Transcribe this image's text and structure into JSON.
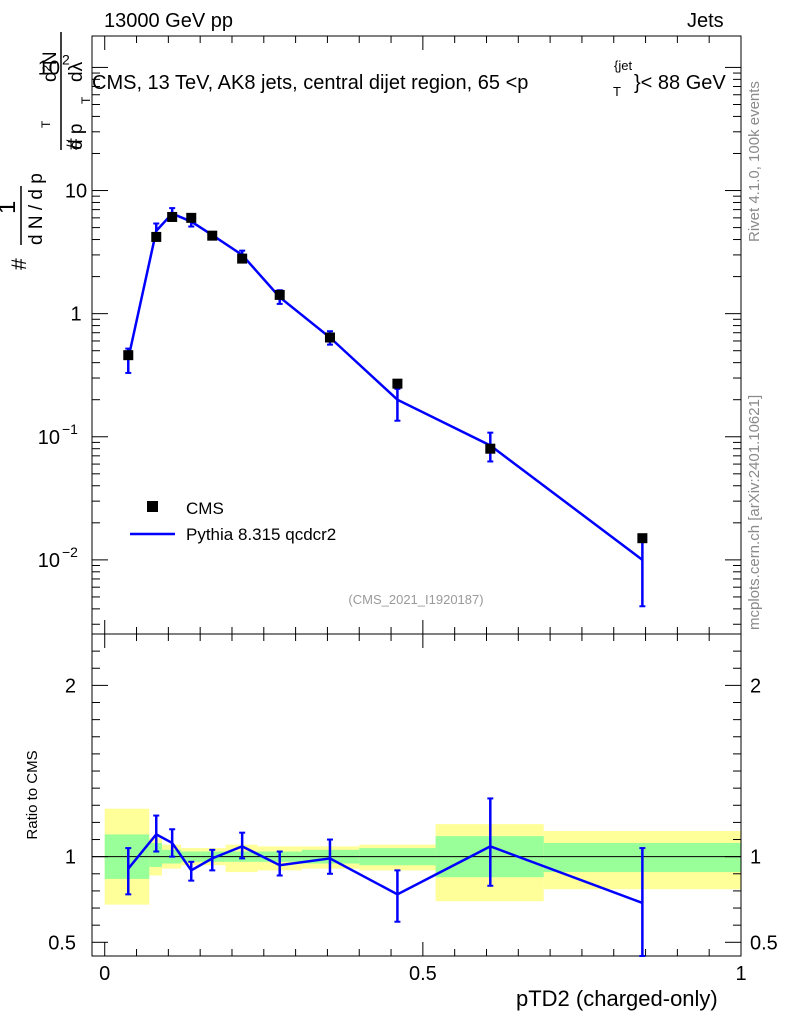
{
  "header": {
    "left": "13000 GeV pp",
    "right": "Jets"
  },
  "side_labels": {
    "rivet": "Rivet 4.1.0,  100k events",
    "source": "mcplots.cern.ch [arXiv:2401.10621]"
  },
  "chart_data": {
    "type": "line",
    "title": "CMS, 13 TeV, AK8 jets, central dijet region, 65 <p_T^{jet}< 88 GeV",
    "title_parts": {
      "before": "CMS, 13 TeV, AK8 jets, central dijet region, 65 <p",
      "sub": "T",
      "sup": "{jet",
      "after": "}< 88 GeV"
    },
    "analysis_id": "(CMS_2021_I1920187)",
    "xlabel": "pTD2 (charged-only)",
    "ylabel": "1/(dN/dp_T) · d²N/(dp_T dλ)",
    "ylabel_parts": {
      "hash": "#",
      "one": "1",
      "dN": "d N / d p",
      "T": "T",
      "d2N": "d²N",
      "dp": "d p",
      "dl": "dλ"
    },
    "ratio_ylabel": "Ratio to CMS",
    "xlim": [
      0,
      1
    ],
    "ylim": [
      0.0025,
      180
    ],
    "ratio_ylim": [
      0.42,
      2.3
    ],
    "yscale": "log",
    "x_ticks": [
      {
        "value": 0,
        "label": "0"
      },
      {
        "value": 0.5,
        "label": "0.5"
      },
      {
        "value": 1,
        "label": "1"
      }
    ],
    "y_ticks": [
      {
        "value": 0.01,
        "base": "10",
        "exp": "−2"
      },
      {
        "value": 0.1,
        "base": "10",
        "exp": "−1"
      },
      {
        "value": 1,
        "base": "1",
        "exp": ""
      },
      {
        "value": 10,
        "base": "10",
        "exp": ""
      },
      {
        "value": 100,
        "base": "10",
        "exp": "2"
      }
    ],
    "ratio_y_ticks": [
      {
        "value": 0.5,
        "label": "0.5"
      },
      {
        "value": 1,
        "label": "1"
      },
      {
        "value": 2,
        "label": "2"
      }
    ],
    "legend": [
      {
        "name": "CMS",
        "marker": "square"
      },
      {
        "name": "Pythia 8.315 qcdcr2",
        "marker": "line"
      }
    ],
    "legend_position": "bottom-left",
    "data": {
      "name": "CMS",
      "color": "#000000",
      "x": [
        0.037,
        0.081,
        0.106,
        0.136,
        0.169,
        0.216,
        0.275,
        0.354,
        0.46,
        0.606,
        0.845
      ],
      "y": [
        0.46,
        4.2,
        6.1,
        6.0,
        4.3,
        2.8,
        1.42,
        0.64,
        0.27,
        0.08,
        0.015
      ]
    },
    "mc": {
      "name": "Pythia 8.315 qcdcr2",
      "color": "#0000ff",
      "x": [
        0.037,
        0.081,
        0.106,
        0.136,
        0.169,
        0.216,
        0.275,
        0.354,
        0.46,
        0.606,
        0.845
      ],
      "y": [
        0.43,
        4.7,
        6.5,
        5.6,
        4.35,
        3.0,
        1.36,
        0.64,
        0.2,
        0.085,
        0.01
      ],
      "err_lo": [
        0.33,
        4.0,
        5.7,
        5.1,
        4.1,
        2.75,
        1.2,
        0.56,
        0.135,
        0.063,
        0.0042
      ],
      "err_hi": [
        0.52,
        5.4,
        7.2,
        6.1,
        4.55,
        3.25,
        1.55,
        0.72,
        0.245,
        0.108,
        0.0155
      ]
    },
    "ratio": {
      "x": [
        0.037,
        0.081,
        0.106,
        0.136,
        0.169,
        0.216,
        0.275,
        0.354,
        0.46,
        0.606,
        0.845
      ],
      "y": [
        0.93,
        1.13,
        1.08,
        0.92,
        0.99,
        1.06,
        0.95,
        0.99,
        0.78,
        1.06,
        0.73
      ],
      "err_lo": [
        0.78,
        1.03,
        1.0,
        0.86,
        0.92,
        0.99,
        0.89,
        0.9,
        0.62,
        0.83,
        0.42
      ],
      "err_hi": [
        1.05,
        1.24,
        1.16,
        0.97,
        1.04,
        1.14,
        1.03,
        1.1,
        0.92,
        1.34,
        1.05
      ]
    },
    "ratio_bands": [
      {
        "x0": 0.0,
        "x1": 0.07,
        "stat": [
          0.87,
          1.13
        ],
        "total": [
          0.72,
          1.28
        ]
      },
      {
        "x0": 0.07,
        "x1": 0.09,
        "stat": [
          0.94,
          1.08
        ],
        "total": [
          0.89,
          1.11
        ]
      },
      {
        "x0": 0.09,
        "x1": 0.12,
        "stat": [
          0.96,
          1.04
        ],
        "total": [
          0.93,
          1.07
        ]
      },
      {
        "x0": 0.12,
        "x1": 0.15,
        "stat": [
          0.97,
          1.03
        ],
        "total": [
          0.95,
          1.05
        ]
      },
      {
        "x0": 0.15,
        "x1": 0.19,
        "stat": [
          0.97,
          1.03
        ],
        "total": [
          0.95,
          1.05
        ]
      },
      {
        "x0": 0.19,
        "x1": 0.24,
        "stat": [
          0.97,
          1.03
        ],
        "total": [
          0.91,
          1.07
        ]
      },
      {
        "x0": 0.24,
        "x1": 0.31,
        "stat": [
          0.97,
          1.03
        ],
        "total": [
          0.92,
          1.06
        ]
      },
      {
        "x0": 0.31,
        "x1": 0.4,
        "stat": [
          0.96,
          1.04
        ],
        "total": [
          0.93,
          1.06
        ]
      },
      {
        "x0": 0.4,
        "x1": 0.52,
        "stat": [
          0.95,
          1.05
        ],
        "total": [
          0.92,
          1.07
        ]
      },
      {
        "x0": 0.52,
        "x1": 0.69,
        "stat": [
          0.88,
          1.12
        ],
        "total": [
          0.74,
          1.19
        ]
      },
      {
        "x0": 0.69,
        "x1": 1.0,
        "stat": [
          0.91,
          1.08
        ],
        "total": [
          0.81,
          1.15
        ]
      }
    ]
  }
}
